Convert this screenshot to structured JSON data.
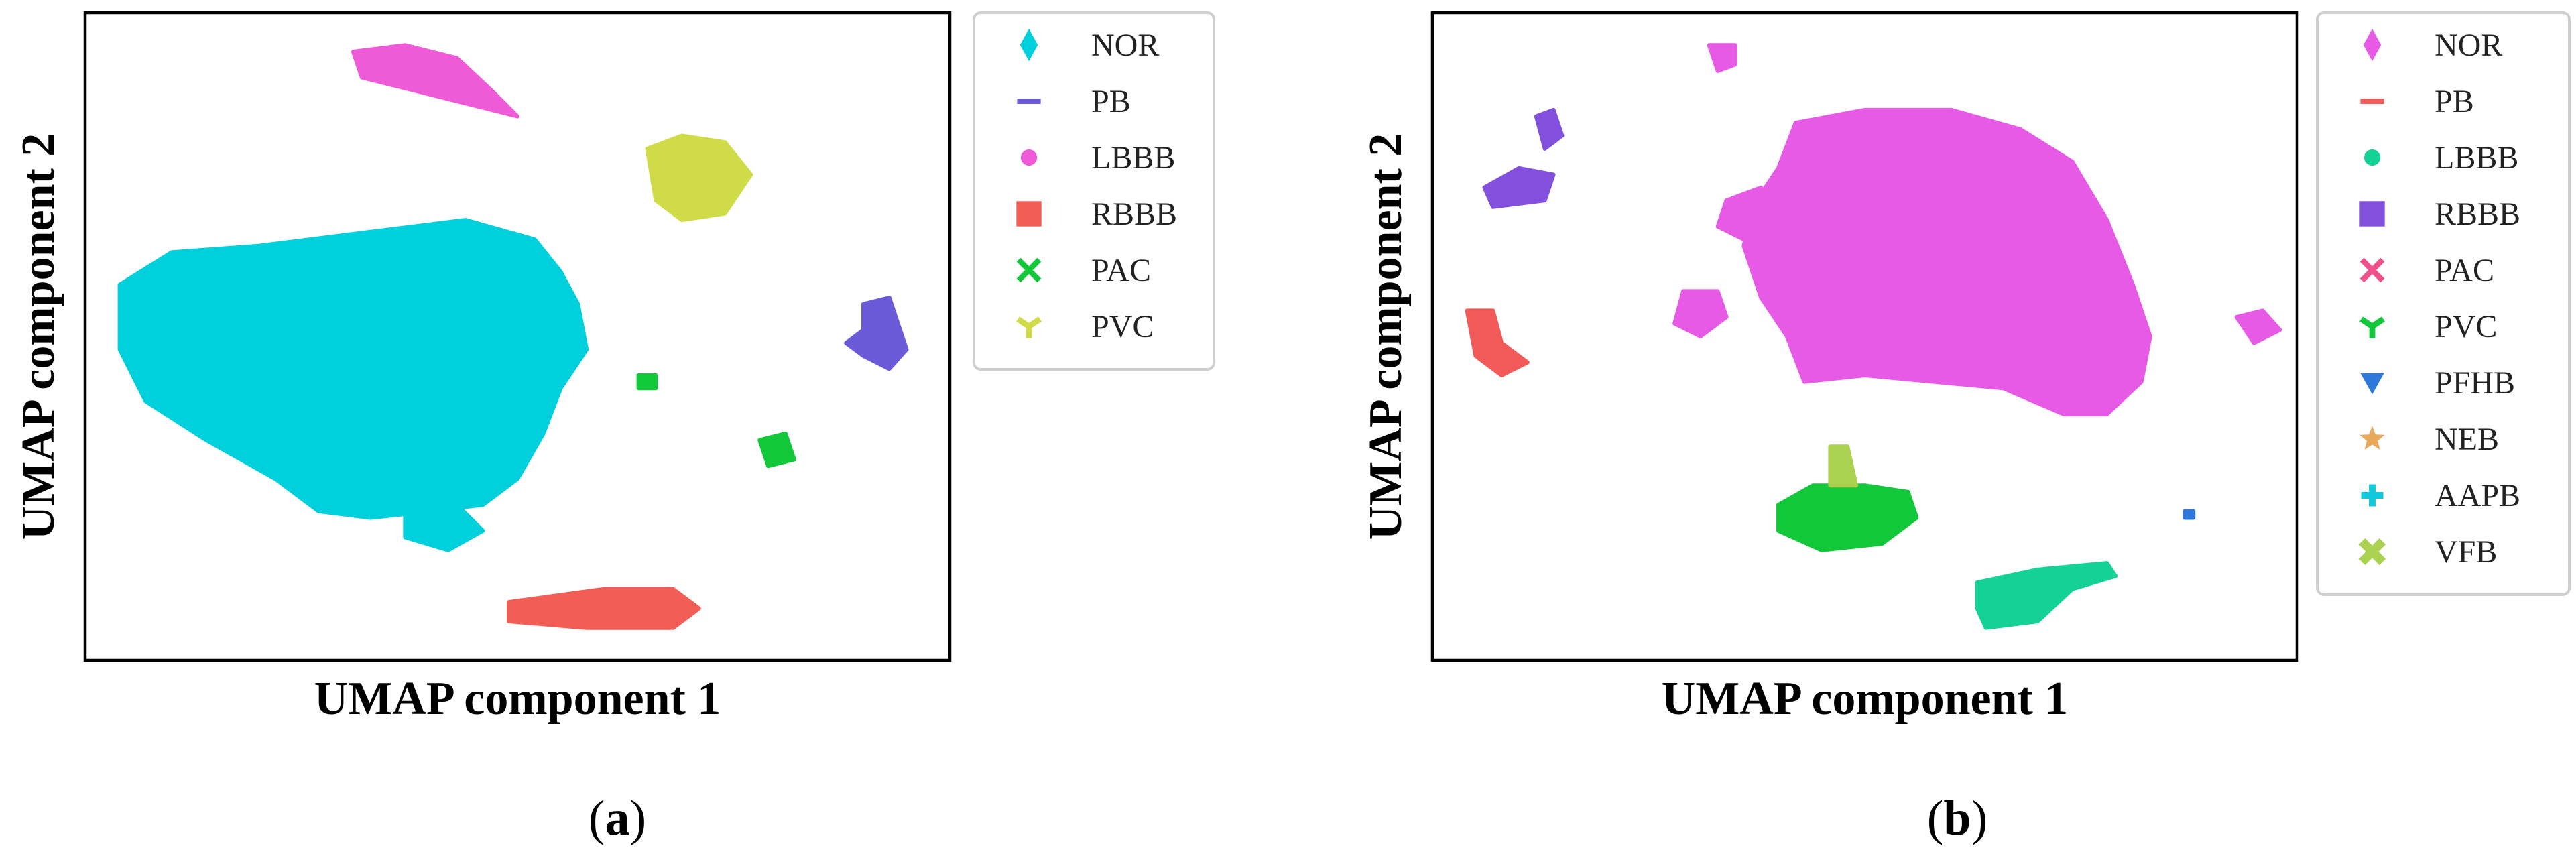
{
  "chart_data": [
    {
      "type": "scatter",
      "panel_label": "a",
      "xlabel": "UMAP component 1",
      "ylabel": "UMAP component 2",
      "ticks": "none",
      "grid": false,
      "legend_position": "outside-right",
      "series": [
        {
          "name": "NOR",
          "color": "#00d0dc",
          "marker": "diamond"
        },
        {
          "name": "PB",
          "color": "#6a5ad8",
          "marker": "dash"
        },
        {
          "name": "LBBB",
          "color": "#ee5ad8",
          "marker": "circle"
        },
        {
          "name": "RBBB",
          "color": "#f25e56",
          "marker": "square"
        },
        {
          "name": "PAC",
          "color": "#12c83a",
          "marker": "x"
        },
        {
          "name": "PVC",
          "color": "#cfdc48",
          "marker": "tri-down"
        }
      ],
      "clusters": [
        {
          "series": "NOR",
          "shape": [
            [
              0.04,
              0.42
            ],
            [
              0.1,
              0.37
            ],
            [
              0.2,
              0.36
            ],
            [
              0.32,
              0.34
            ],
            [
              0.44,
              0.32
            ],
            [
              0.52,
              0.35
            ],
            [
              0.55,
              0.4
            ],
            [
              0.57,
              0.45
            ],
            [
              0.58,
              0.52
            ],
            [
              0.55,
              0.58
            ],
            [
              0.53,
              0.65
            ],
            [
              0.5,
              0.72
            ],
            [
              0.46,
              0.76
            ],
            [
              0.4,
              0.77
            ],
            [
              0.33,
              0.78
            ],
            [
              0.27,
              0.77
            ],
            [
              0.22,
              0.72
            ],
            [
              0.14,
              0.66
            ],
            [
              0.07,
              0.6
            ],
            [
              0.04,
              0.52
            ]
          ]
        },
        {
          "series": "NOR",
          "shape": [
            [
              0.37,
              0.76
            ],
            [
              0.43,
              0.76
            ],
            [
              0.46,
              0.8
            ],
            [
              0.42,
              0.83
            ],
            [
              0.37,
              0.81
            ]
          ]
        },
        {
          "series": "LBBB",
          "shape": [
            [
              0.31,
              0.06
            ],
            [
              0.37,
              0.05
            ],
            [
              0.43,
              0.07
            ],
            [
              0.47,
              0.12
            ],
            [
              0.5,
              0.16
            ],
            [
              0.44,
              0.14
            ],
            [
              0.38,
              0.12
            ],
            [
              0.32,
              0.1
            ]
          ]
        },
        {
          "series": "PVC",
          "shape": [
            [
              0.65,
              0.21
            ],
            [
              0.69,
              0.19
            ],
            [
              0.74,
              0.2
            ],
            [
              0.77,
              0.25
            ],
            [
              0.74,
              0.31
            ],
            [
              0.69,
              0.32
            ],
            [
              0.66,
              0.29
            ]
          ]
        },
        {
          "series": "PB",
          "shape": [
            [
              0.9,
              0.45
            ],
            [
              0.93,
              0.44
            ],
            [
              0.94,
              0.48
            ],
            [
              0.95,
              0.52
            ],
            [
              0.93,
              0.55
            ],
            [
              0.9,
              0.53
            ],
            [
              0.88,
              0.51
            ],
            [
              0.9,
              0.49
            ]
          ]
        },
        {
          "series": "PAC",
          "shape": [
            [
              0.78,
              0.66
            ],
            [
              0.81,
              0.65
            ],
            [
              0.82,
              0.69
            ],
            [
              0.79,
              0.7
            ]
          ]
        },
        {
          "series": "PAC",
          "shape": [
            [
              0.64,
              0.56
            ],
            [
              0.66,
              0.56
            ],
            [
              0.66,
              0.58
            ],
            [
              0.64,
              0.58
            ]
          ]
        },
        {
          "series": "RBBB",
          "shape": [
            [
              0.49,
              0.91
            ],
            [
              0.6,
              0.89
            ],
            [
              0.68,
              0.89
            ],
            [
              0.71,
              0.92
            ],
            [
              0.68,
              0.95
            ],
            [
              0.58,
              0.95
            ],
            [
              0.49,
              0.94
            ]
          ]
        }
      ]
    },
    {
      "type": "scatter",
      "panel_label": "b",
      "xlabel": "UMAP component 1",
      "ylabel": "UMAP component 2",
      "ticks": "none",
      "grid": false,
      "legend_position": "outside-right",
      "series": [
        {
          "name": "NOR",
          "color": "#e65ae6",
          "marker": "diamond"
        },
        {
          "name": "PB",
          "color": "#f25a5a",
          "marker": "dash"
        },
        {
          "name": "LBBB",
          "color": "#14d296",
          "marker": "circle"
        },
        {
          "name": "RBBB",
          "color": "#8250dc",
          "marker": "square"
        },
        {
          "name": "PAC",
          "color": "#f0508c",
          "marker": "x"
        },
        {
          "name": "PVC",
          "color": "#12c83a",
          "marker": "tri-down"
        },
        {
          "name": "PFHB",
          "color": "#2e78dc",
          "marker": "triangle-down"
        },
        {
          "name": "NEB",
          "color": "#e8a85a",
          "marker": "star"
        },
        {
          "name": "AAPB",
          "color": "#14c8dc",
          "marker": "plus"
        },
        {
          "name": "VFB",
          "color": "#aad250",
          "marker": "x-thick"
        }
      ],
      "clusters": [
        {
          "series": "NOR",
          "shape": [
            [
              0.42,
              0.17
            ],
            [
              0.5,
              0.15
            ],
            [
              0.6,
              0.15
            ],
            [
              0.68,
              0.18
            ],
            [
              0.74,
              0.23
            ],
            [
              0.78,
              0.32
            ],
            [
              0.81,
              0.42
            ],
            [
              0.83,
              0.5
            ],
            [
              0.82,
              0.57
            ],
            [
              0.78,
              0.62
            ],
            [
              0.73,
              0.62
            ],
            [
              0.66,
              0.58
            ],
            [
              0.58,
              0.57
            ],
            [
              0.5,
              0.56
            ],
            [
              0.43,
              0.57
            ],
            [
              0.41,
              0.5
            ],
            [
              0.38,
              0.44
            ],
            [
              0.36,
              0.36
            ],
            [
              0.37,
              0.3
            ],
            [
              0.4,
              0.24
            ]
          ]
        },
        {
          "series": "NOR",
          "shape": [
            [
              0.34,
              0.29
            ],
            [
              0.38,
              0.27
            ],
            [
              0.4,
              0.33
            ],
            [
              0.36,
              0.35
            ],
            [
              0.33,
              0.33
            ]
          ]
        },
        {
          "series": "NOR",
          "shape": [
            [
              0.29,
              0.43
            ],
            [
              0.33,
              0.43
            ],
            [
              0.34,
              0.47
            ],
            [
              0.31,
              0.5
            ],
            [
              0.28,
              0.48
            ]
          ]
        },
        {
          "series": "NOR",
          "shape": [
            [
              0.32,
              0.05
            ],
            [
              0.35,
              0.05
            ],
            [
              0.35,
              0.08
            ],
            [
              0.33,
              0.09
            ]
          ]
        },
        {
          "series": "NOR",
          "shape": [
            [
              0.93,
              0.47
            ],
            [
              0.96,
              0.46
            ],
            [
              0.98,
              0.49
            ],
            [
              0.95,
              0.51
            ]
          ]
        },
        {
          "series": "RBBB",
          "shape": [
            [
              0.12,
              0.16
            ],
            [
              0.14,
              0.15
            ],
            [
              0.15,
              0.19
            ],
            [
              0.13,
              0.21
            ]
          ]
        },
        {
          "series": "RBBB",
          "shape": [
            [
              0.06,
              0.27
            ],
            [
              0.1,
              0.24
            ],
            [
              0.14,
              0.25
            ],
            [
              0.13,
              0.29
            ],
            [
              0.07,
              0.3
            ]
          ]
        },
        {
          "series": "PB",
          "shape": [
            [
              0.04,
              0.46
            ],
            [
              0.07,
              0.46
            ],
            [
              0.08,
              0.51
            ],
            [
              0.11,
              0.54
            ],
            [
              0.08,
              0.56
            ],
            [
              0.05,
              0.53
            ]
          ]
        },
        {
          "series": "PVC",
          "shape": [
            [
              0.4,
              0.76
            ],
            [
              0.44,
              0.73
            ],
            [
              0.5,
              0.73
            ],
            [
              0.55,
              0.74
            ],
            [
              0.56,
              0.78
            ],
            [
              0.52,
              0.82
            ],
            [
              0.45,
              0.83
            ],
            [
              0.4,
              0.8
            ]
          ]
        },
        {
          "series": "VFB",
          "shape": [
            [
              0.46,
              0.67
            ],
            [
              0.48,
              0.67
            ],
            [
              0.49,
              0.73
            ],
            [
              0.46,
              0.73
            ]
          ]
        },
        {
          "series": "LBBB",
          "shape": [
            [
              0.63,
              0.88
            ],
            [
              0.7,
              0.86
            ],
            [
              0.78,
              0.85
            ],
            [
              0.79,
              0.87
            ],
            [
              0.74,
              0.89
            ],
            [
              0.7,
              0.94
            ],
            [
              0.64,
              0.95
            ],
            [
              0.63,
              0.92
            ]
          ]
        },
        {
          "series": "PFHB",
          "shape": [
            [
              0.87,
              0.77
            ],
            [
              0.88,
              0.77
            ],
            [
              0.88,
              0.78
            ],
            [
              0.87,
              0.78
            ]
          ]
        }
      ]
    }
  ]
}
